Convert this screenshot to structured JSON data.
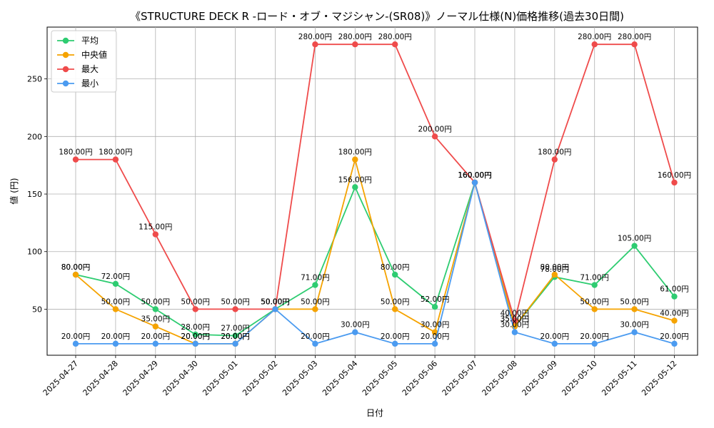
{
  "chart_data": {
    "type": "line",
    "title": "《STRUCTURE DECK R -ロード・オブ・マジシャン-(SR08)》ノーマル仕様(N)価格推移(過去30日間)",
    "xlabel": "日付",
    "ylabel": "値 (円)",
    "ylim": [
      10,
      295
    ],
    "yticks": [
      50,
      100,
      150,
      200,
      250
    ],
    "grid": true,
    "legend_position": "top-left",
    "value_suffix": "円",
    "categories": [
      "2025-04-27",
      "2025-04-28",
      "2025-04-29",
      "2025-04-30",
      "2025-05-01",
      "2025-05-02",
      "2025-05-03",
      "2025-05-04",
      "2025-05-05",
      "2025-05-06",
      "2025-05-07",
      "2025-05-08",
      "2025-05-09",
      "2025-05-10",
      "2025-05-11",
      "2025-05-12"
    ],
    "series": [
      {
        "name": "平均",
        "color": "#2ecc71",
        "values": [
          80,
          72,
          50,
          28,
          27,
          50,
          71,
          156,
          80,
          52,
          160,
          35,
          78,
          71,
          105,
          61
        ]
      },
      {
        "name": "中央値",
        "color": "#f5a300",
        "values": [
          80,
          50,
          35,
          20,
          20,
          50,
          50,
          180,
          50,
          30,
          160,
          35,
          80,
          50,
          50,
          40
        ]
      },
      {
        "name": "最大",
        "color": "#ef4b4b",
        "values": [
          180,
          180,
          115,
          50,
          50,
          50,
          280,
          280,
          280,
          200,
          160,
          40,
          180,
          280,
          280,
          160
        ]
      },
      {
        "name": "最小",
        "color": "#4b9bf0",
        "values": [
          20,
          20,
          20,
          20,
          20,
          50,
          20,
          30,
          20,
          20,
          160,
          30,
          20,
          20,
          30,
          20
        ]
      }
    ]
  }
}
